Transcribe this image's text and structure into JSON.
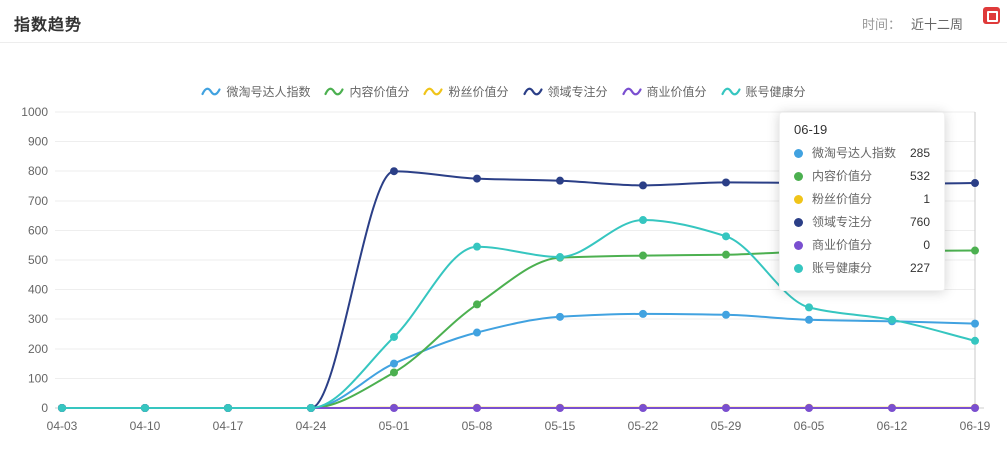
{
  "header": {
    "title": "指数趋势",
    "time_label": "时间：",
    "time_value": "近十二周"
  },
  "chart_data": {
    "type": "line",
    "smooth": true,
    "grid": true,
    "legend_position": "top",
    "x": [
      "04-03",
      "04-10",
      "04-17",
      "04-24",
      "05-01",
      "05-08",
      "05-15",
      "05-22",
      "05-29",
      "06-05",
      "06-12",
      "06-19"
    ],
    "ylim": [
      0,
      1000
    ],
    "ytick_step": 100,
    "series": [
      {
        "name": "微淘号达人指数",
        "color": "#41a2e0",
        "values": [
          0,
          0,
          0,
          0,
          150,
          255,
          308,
          318,
          315,
          298,
          293,
          285
        ]
      },
      {
        "name": "内容价值分",
        "color": "#4cb050",
        "values": [
          0,
          0,
          0,
          0,
          120,
          350,
          508,
          515,
          518,
          528,
          530,
          532
        ]
      },
      {
        "name": "粉丝价值分",
        "color": "#f0c419",
        "values": [
          0,
          0,
          0,
          0,
          1,
          1,
          1,
          1,
          1,
          1,
          1,
          1
        ]
      },
      {
        "name": "领域专注分",
        "color": "#2b3f87",
        "values": [
          0,
          0,
          0,
          0,
          800,
          775,
          768,
          752,
          762,
          760,
          757,
          760
        ]
      },
      {
        "name": "商业价值分",
        "color": "#7a4fd0",
        "values": [
          0,
          0,
          0,
          0,
          0,
          0,
          0,
          0,
          0,
          0,
          0,
          0
        ]
      },
      {
        "name": "账号健康分",
        "color": "#36c6c0",
        "values": [
          0,
          0,
          0,
          0,
          240,
          545,
          510,
          635,
          580,
          340,
          298,
          227
        ]
      }
    ]
  },
  "tooltip": {
    "title": "06-19",
    "rows": [
      {
        "label": "微淘号达人指数",
        "value": "285",
        "color": "#41a2e0"
      },
      {
        "label": "内容价值分",
        "value": "532",
        "color": "#4cb050"
      },
      {
        "label": "粉丝价值分",
        "value": "1",
        "color": "#f0c419"
      },
      {
        "label": "领域专注分",
        "value": "760",
        "color": "#2b3f87"
      },
      {
        "label": "商业价值分",
        "value": "0",
        "color": "#7a4fd0"
      },
      {
        "label": "账号健康分",
        "value": "227",
        "color": "#36c6c0"
      }
    ]
  }
}
